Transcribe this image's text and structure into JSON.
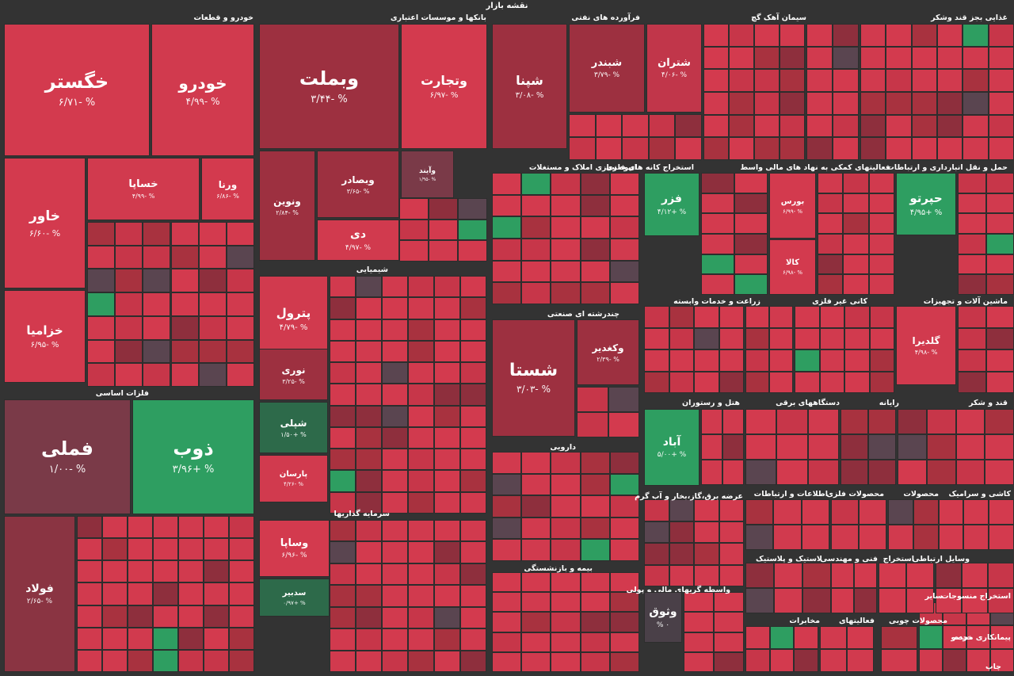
{
  "chart_data": {
    "type": "treemap",
    "title": "نقشه بازار",
    "sectors": [
      "خودرو و قطعات",
      "بانکها و موسسات اعتباری",
      "فرآورده های نفتی",
      "سیمان آهک گچ",
      "غذایی بجز قند وشکر",
      "فلزات اساسی",
      "شیمیایی",
      "انبوه سازی املاک و مستغلات",
      "استخراج کانه های فلزی",
      "فعالیتهای کمکی به نهاد های مالی واسط",
      "حمل و نقل انبارداری و ارتباطات",
      "چندرشته ای صنعتی",
      "زراعت و خدمات وابسته",
      "کانی غیر فلزی",
      "ماشین آلات و تجهیزات",
      "هتل و رستوران",
      "دستگاههای برقی",
      "رایانه",
      "قند و شکر",
      "دارویی",
      "سرمایه گذاریها",
      "عرضه برق،گاز،بخار و آب گرم",
      "اطلاعات و ارتباطات",
      "محصولات فلزی",
      "محصولات",
      "کاشی و سرامیک",
      "بیمه و بازنشستگی",
      "لاستیک و پلاستیک",
      "فنی و مهندسی",
      "استخراج",
      "وسایل ارتباطی",
      "واسطه گریهای مالی و پولی",
      "مخابرات",
      "فعالیتهای",
      "سایر",
      "استخراج منسوجات",
      "محصولات چوبی",
      "پیمانکاری محصو",
      "خرده",
      "چاپ"
    ],
    "stocks": [
      {
        "name": "خگستر",
        "change": "-6.71",
        "color": "#d33a4e"
      },
      {
        "name": "خودرو",
        "change": "-4.99",
        "color": "#d13a4e"
      },
      {
        "name": "خاور",
        "change": "-6.60",
        "color": "#d33a4e"
      },
      {
        "name": "خساپا",
        "change": "-4.99",
        "color": "#d13a4e"
      },
      {
        "name": "ورنا",
        "change": "-6.86",
        "color": "#d33a4e"
      },
      {
        "name": "خزامیا",
        "change": "-6.95",
        "color": "#d33a4e"
      },
      {
        "name": "وبملت",
        "change": "-3.44",
        "color": "#9d3040"
      },
      {
        "name": "وتجارت",
        "change": "-6.97",
        "color": "#d33a4e"
      },
      {
        "name": "ونوین",
        "change": "-2.84",
        "color": "#9d3040"
      },
      {
        "name": "وبصادر",
        "change": "-3.65",
        "color": "#9d3040"
      },
      {
        "name": "وآیند",
        "change": "-1.95",
        "color": "#7a3a48"
      },
      {
        "name": "دی",
        "change": "-4.97",
        "color": "#d13a4e"
      },
      {
        "name": "شپنا",
        "change": "-3.08",
        "color": "#9d3040"
      },
      {
        "name": "شبندر",
        "change": "-3.79",
        "color": "#9d3040"
      },
      {
        "name": "شتران",
        "change": "-4.06",
        "color": "#c1364a"
      },
      {
        "name": "فملی",
        "change": "-1.00",
        "color": "#7a3a48"
      },
      {
        "name": "ذوب",
        "change": "+3.96",
        "color": "#2e9e61"
      },
      {
        "name": "فولاد",
        "change": "-2.65",
        "color": "#8a3442"
      },
      {
        "name": "پترول",
        "change": "-4.79",
        "color": "#d13a4e"
      },
      {
        "name": "نوری",
        "change": "-3.25",
        "color": "#9d3040"
      },
      {
        "name": "شپلی",
        "change": "+1.50",
        "color": "#2d6a4a"
      },
      {
        "name": "پارسان",
        "change": "-4.26",
        "color": "#d13a4e"
      },
      {
        "name": "شستا",
        "change": "-3.03",
        "color": "#9d3040"
      },
      {
        "name": "وکغدیر",
        "change": "-2.39",
        "color": "#9d3040"
      },
      {
        "name": "فزر",
        "change": "+4.12",
        "color": "#2e9e61"
      },
      {
        "name": "حپرتو",
        "change": "+4.95",
        "color": "#2e9e61"
      },
      {
        "name": "آباد",
        "change": "+5.00",
        "color": "#2e9e61"
      },
      {
        "name": "وساپا",
        "change": "-6.96",
        "color": "#d33a4e"
      },
      {
        "name": "سدبیر",
        "change": "+0.97",
        "color": "#2d6a4a"
      },
      {
        "name": "وثوق",
        "change": "0",
        "color": "#4a4048"
      },
      {
        "name": "گلدیرا",
        "change": "-4.98",
        "color": "#d13a4e"
      },
      {
        "name": "بورس",
        "change": "-6.99",
        "color": "#d33a4e"
      },
      {
        "name": "کالا",
        "change": "-6.98",
        "color": "#d33a4e"
      }
    ]
  },
  "legend_note": ""
}
